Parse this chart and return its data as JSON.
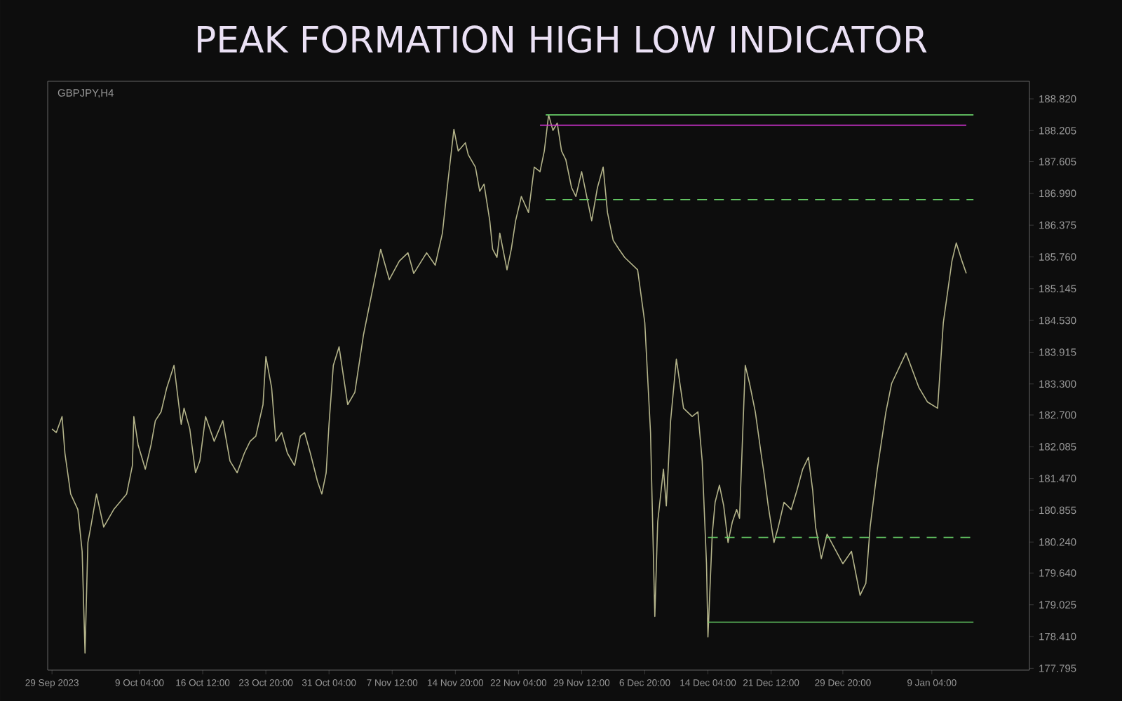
{
  "chart_data": {
    "type": "line",
    "title": "PEAK FORMATION HIGH LOW INDICATOR",
    "annotations": [
      "GBPJPY,H4"
    ],
    "xlim": [
      "2023-09-28T12:00",
      "2024-01-20T12:00"
    ],
    "xticks": [
      {
        "value": "2023-09-29T00:00",
        "label": "29 Sep 2023"
      },
      {
        "value": "2023-10-09T04:00",
        "label": "9 Oct 04:00"
      },
      {
        "value": "2023-10-16T12:00",
        "label": "16 Oct 12:00"
      },
      {
        "value": "2023-10-23T20:00",
        "label": "23 Oct 20:00"
      },
      {
        "value": "2023-10-31T04:00",
        "label": "31 Oct 04:00"
      },
      {
        "value": "2023-11-07T12:00",
        "label": "7 Nov 12:00"
      },
      {
        "value": "2023-11-14T20:00",
        "label": "14 Nov 20:00"
      },
      {
        "value": "2023-11-22T04:00",
        "label": "22 Nov 04:00"
      },
      {
        "value": "2023-11-29T12:00",
        "label": "29 Nov 12:00"
      },
      {
        "value": "2023-12-06T20:00",
        "label": "6 Dec 20:00"
      },
      {
        "value": "2023-12-14T04:00",
        "label": "14 Dec 04:00"
      },
      {
        "value": "2023-12-21T12:00",
        "label": "21 Dec 12:00"
      },
      {
        "value": "2023-12-29T20:00",
        "label": "29 Dec 20:00"
      },
      {
        "value": "2024-01-09T04:00",
        "label": "9 Jan 04:00"
      }
    ],
    "ylim": [
      177.76,
      189.16
    ],
    "yticks": [
      {
        "value": 188.82,
        "label": "188.820"
      },
      {
        "value": 188.205,
        "label": "188.205"
      },
      {
        "value": 187.605,
        "label": "187.605"
      },
      {
        "value": 186.99,
        "label": "186.990"
      },
      {
        "value": 186.375,
        "label": "186.375"
      },
      {
        "value": 185.76,
        "label": "185.760"
      },
      {
        "value": 185.145,
        "label": "185.145"
      },
      {
        "value": 184.53,
        "label": "184.530"
      },
      {
        "value": 183.915,
        "label": "183.915"
      },
      {
        "value": 183.3,
        "label": "183.300"
      },
      {
        "value": 182.7,
        "label": "182.700"
      },
      {
        "value": 182.085,
        "label": "182.085"
      },
      {
        "value": 181.47,
        "label": "181.470"
      },
      {
        "value": 180.855,
        "label": "180.855"
      },
      {
        "value": 180.24,
        "label": "180.240"
      },
      {
        "value": 179.64,
        "label": "179.640"
      },
      {
        "value": 179.025,
        "label": "179.025"
      },
      {
        "value": 178.41,
        "label": "178.410"
      },
      {
        "value": 177.795,
        "label": "177.795"
      }
    ],
    "grid": false,
    "marker": "none",
    "series": [
      {
        "color": "#b4b48a",
        "line_style": "solid",
        "x": [
          "2023-09-29T00:00",
          "2023-09-29T12:00",
          "2023-09-30T04:00",
          "2023-09-30T12:00",
          "2023-10-01T04:00",
          "2023-10-02T00:00",
          "2023-10-02T12:00",
          "2023-10-02T20:00",
          "2023-10-03T04:00",
          "2023-10-03T12:00",
          "2023-10-04T04:00",
          "2023-10-05T00:00",
          "2023-10-06T04:00",
          "2023-10-07T16:00",
          "2023-10-08T08:00",
          "2023-10-08T12:00",
          "2023-10-09T00:00",
          "2023-10-09T20:00",
          "2023-10-10T12:00",
          "2023-10-11T00:00",
          "2023-10-11T16:00",
          "2023-10-12T08:00",
          "2023-10-13T04:00",
          "2023-10-14T00:00",
          "2023-10-14T08:00",
          "2023-10-15T00:00",
          "2023-10-15T16:00",
          "2023-10-16T04:00",
          "2023-10-16T20:00",
          "2023-10-17T20:00",
          "2023-10-18T20:00",
          "2023-10-19T16:00",
          "2023-10-20T12:00",
          "2023-10-21T08:00",
          "2023-10-22T00:00",
          "2023-10-22T16:00",
          "2023-10-23T12:00",
          "2023-10-23T20:00",
          "2023-10-24T12:00",
          "2023-10-25T00:00",
          "2023-10-25T16:00",
          "2023-10-26T08:00",
          "2023-10-27T04:00",
          "2023-10-27T20:00",
          "2023-10-28T08:00",
          "2023-10-29T00:00",
          "2023-10-29T20:00",
          "2023-10-30T08:00",
          "2023-10-30T20:00",
          "2023-10-31T04:00",
          "2023-10-31T16:00",
          "2023-11-01T08:00",
          "2023-11-02T08:00",
          "2023-11-03T04:00",
          "2023-11-04T04:00",
          "2023-11-05T04:00",
          "2023-11-06T04:00",
          "2023-11-07T04:00",
          "2023-11-08T08:00",
          "2023-11-09T08:00",
          "2023-11-10T00:00",
          "2023-11-11T12:00",
          "2023-11-12T12:00",
          "2023-11-13T08:00",
          "2023-11-14T00:00",
          "2023-11-14T16:00",
          "2023-11-15T04:00",
          "2023-11-16T00:00",
          "2023-11-16T08:00",
          "2023-11-17T04:00",
          "2023-11-17T16:00",
          "2023-11-18T04:00",
          "2023-11-18T20:00",
          "2023-11-19T04:00",
          "2023-11-19T16:00",
          "2023-11-20T00:00",
          "2023-11-20T20:00",
          "2023-11-21T08:00",
          "2023-11-21T20:00",
          "2023-11-22T12:00",
          "2023-11-23T08:00",
          "2023-11-24T00:00",
          "2023-11-24T16:00",
          "2023-11-25T04:00",
          "2023-11-25T16:00",
          "2023-11-26T04:00",
          "2023-11-26T16:00",
          "2023-11-27T04:00",
          "2023-11-27T16:00",
          "2023-11-28T08:00",
          "2023-11-28T20:00",
          "2023-11-29T12:00",
          "2023-11-30T16:00",
          "2023-12-01T08:00",
          "2023-12-02T00:00",
          "2023-12-02T12:00",
          "2023-12-03T04:00",
          "2023-12-03T20:00",
          "2023-12-04T12:00",
          "2023-12-06T00:00",
          "2023-12-06T20:00",
          "2023-12-07T12:00",
          "2023-12-08T00:00",
          "2023-12-08T08:00",
          "2023-12-09T00:00",
          "2023-12-09T08:00",
          "2023-12-09T20:00",
          "2023-12-10T12:00",
          "2023-12-11T08:00",
          "2023-12-12T08:00",
          "2023-12-13T00:00",
          "2023-12-13T12:00",
          "2023-12-14T00:00",
          "2023-12-14T04:00",
          "2023-12-14T16:00",
          "2023-12-15T00:00",
          "2023-12-15T12:00",
          "2023-12-16T00:00",
          "2023-12-16T12:00",
          "2023-12-17T00:00",
          "2023-12-17T12:00",
          "2023-12-17T20:00",
          "2023-12-18T12:00",
          "2023-12-19T00:00",
          "2023-12-19T16:00",
          "2023-12-20T08:00",
          "2023-12-20T16:00",
          "2023-12-21T04:00",
          "2023-12-21T20:00",
          "2023-12-22T08:00",
          "2023-12-23T00:00",
          "2023-12-23T20:00",
          "2023-12-24T12:00",
          "2023-12-25T04:00",
          "2023-12-25T20:00",
          "2023-12-26T08:00",
          "2023-12-26T16:00",
          "2023-12-27T08:00",
          "2023-12-28T00:00",
          "2023-12-29T20:00",
          "2023-12-30T20:00",
          "2023-12-31T20:00",
          "2024-01-01T12:00",
          "2024-01-02T00:00",
          "2024-01-02T20:00",
          "2024-01-03T20:00",
          "2024-01-04T12:00",
          "2024-01-06T04:00",
          "2024-01-07T16:00",
          "2024-01-08T16:00",
          "2024-01-09T20:00",
          "2024-01-10T12:00",
          "2024-01-11T12:00",
          "2024-01-12T00:00",
          "2024-01-12T16:00",
          "2024-01-13T04:00"
        ],
        "values": [
          182.43,
          182.36,
          182.67,
          181.96,
          181.17,
          180.87,
          180.06,
          178.09,
          180.23,
          180.53,
          181.17,
          180.53,
          180.87,
          181.17,
          181.72,
          182.67,
          182.12,
          181.65,
          182.12,
          182.59,
          182.76,
          183.23,
          183.66,
          182.52,
          182.83,
          182.43,
          181.58,
          181.81,
          182.67,
          182.19,
          182.59,
          181.81,
          181.58,
          181.96,
          182.19,
          182.29,
          182.9,
          183.83,
          183.23,
          182.19,
          182.36,
          181.96,
          181.72,
          182.29,
          182.36,
          181.96,
          181.41,
          181.17,
          181.58,
          182.52,
          183.66,
          184.02,
          182.9,
          183.14,
          184.25,
          185.08,
          185.91,
          185.32,
          185.68,
          185.84,
          185.44,
          185.84,
          185.6,
          186.22,
          187.26,
          188.23,
          187.81,
          187.97,
          187.74,
          187.5,
          187.03,
          187.17,
          186.46,
          185.91,
          185.75,
          186.22,
          185.51,
          185.91,
          186.46,
          186.93,
          186.62,
          187.5,
          187.41,
          187.81,
          188.51,
          188.21,
          188.35,
          187.81,
          187.64,
          187.1,
          186.93,
          187.41,
          186.46,
          187.1,
          187.5,
          186.62,
          186.08,
          185.91,
          185.75,
          185.51,
          184.49,
          182.36,
          178.8,
          180.63,
          181.65,
          180.94,
          182.59,
          183.78,
          182.83,
          182.67,
          182.76,
          181.81,
          179.82,
          178.4,
          180.39,
          181.01,
          181.34,
          180.94,
          180.23,
          180.63,
          180.87,
          180.7,
          183.66,
          183.31,
          182.76,
          181.96,
          181.58,
          180.94,
          180.23,
          180.53,
          181.01,
          180.87,
          181.24,
          181.65,
          181.88,
          181.24,
          180.53,
          179.92,
          180.39,
          179.82,
          180.06,
          179.21,
          179.44,
          180.53,
          181.65,
          182.76,
          183.31,
          183.9,
          183.23,
          182.95,
          182.83,
          184.49,
          185.68,
          186.03,
          185.68,
          185.44
        ]
      },
      {
        "color": "#66cc66",
        "line_style": "solid",
        "x": [
          "2023-11-25T08:00",
          "2024-01-14T00:00"
        ],
        "values": [
          188.51,
          188.51
        ]
      },
      {
        "color": "#cc33cc",
        "line_style": "solid",
        "x": [
          "2023-11-24T16:00",
          "2024-01-13T04:00"
        ],
        "values": [
          188.31,
          188.31
        ]
      },
      {
        "color": "#66cc66",
        "line_style": "dashed",
        "x": [
          "2023-11-25T08:00",
          "2024-01-14T00:00"
        ],
        "values": [
          186.87,
          186.87
        ]
      },
      {
        "color": "#66cc66",
        "line_style": "dashed",
        "x": [
          "2023-12-14T04:00",
          "2024-01-14T00:00"
        ],
        "values": [
          180.33,
          180.33
        ]
      },
      {
        "color": "#66cc66",
        "line_style": "solid",
        "x": [
          "2023-12-14T04:00",
          "2024-01-14T00:00"
        ],
        "values": [
          178.69,
          178.69
        ]
      }
    ]
  }
}
